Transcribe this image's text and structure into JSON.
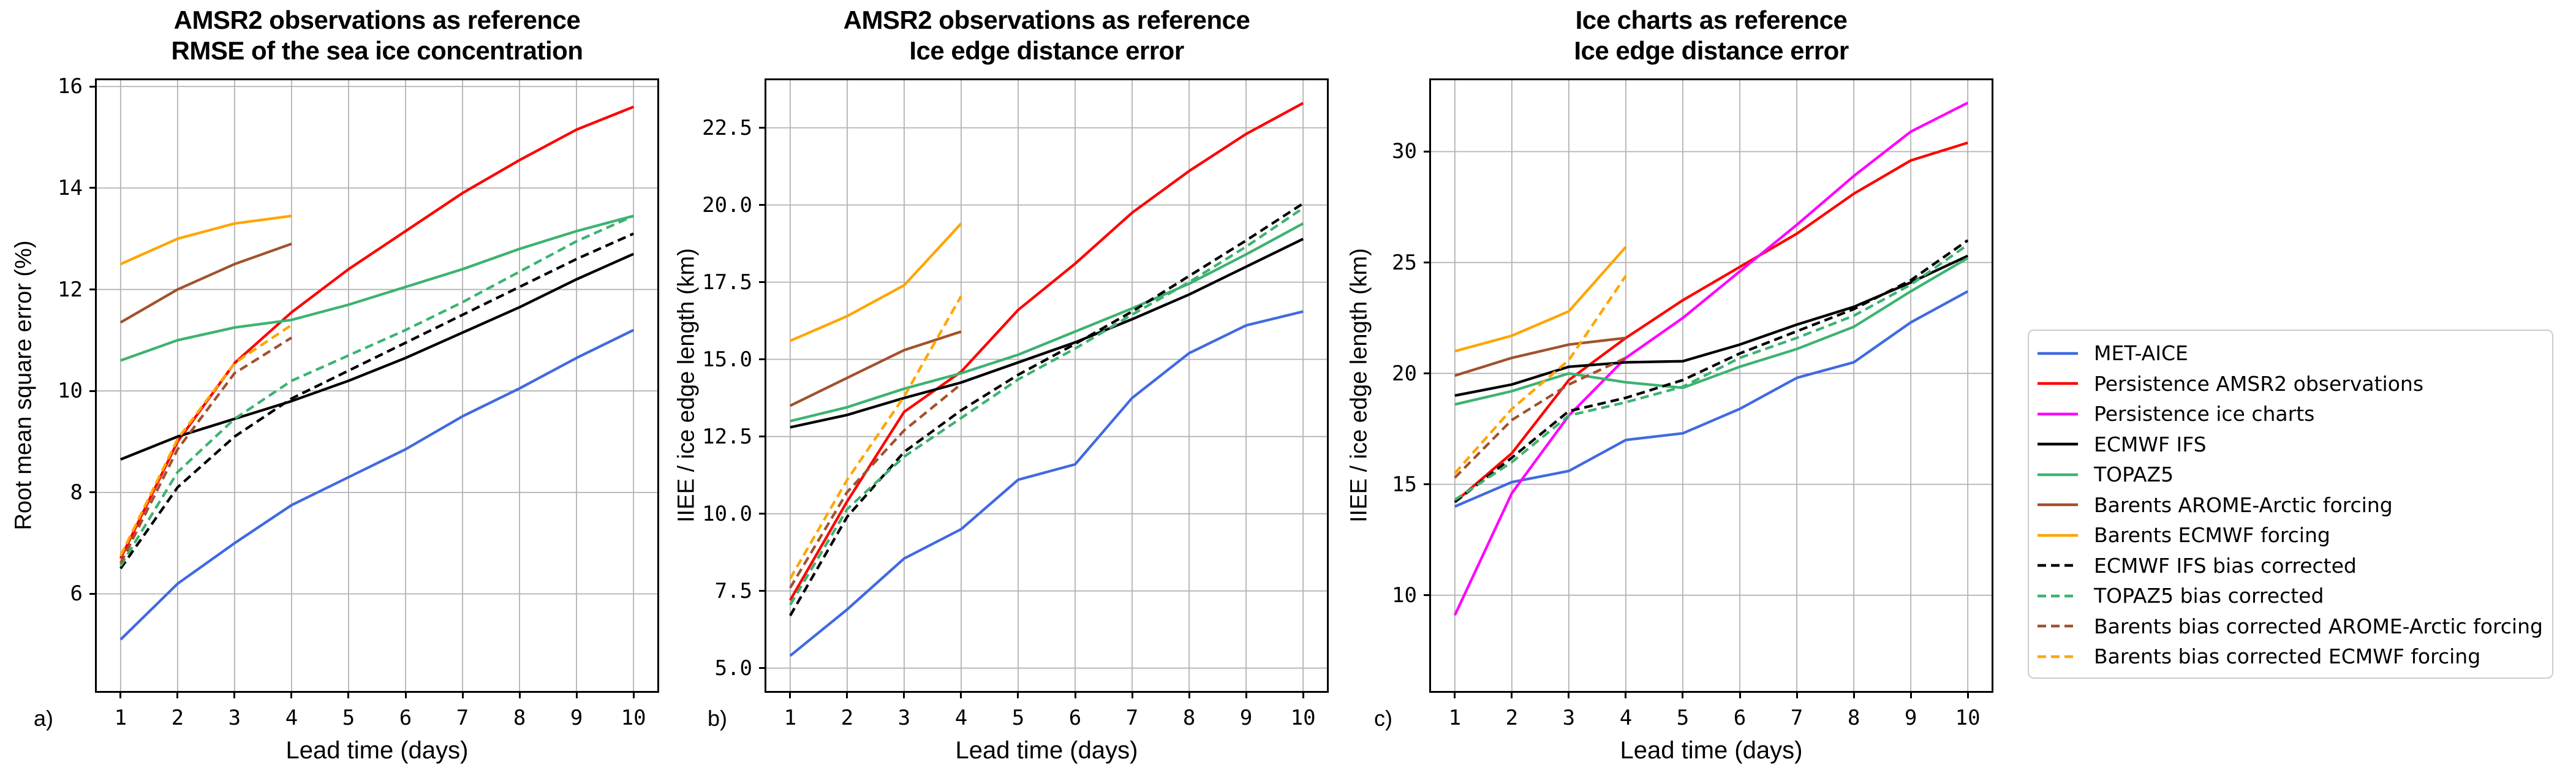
{
  "figure": {
    "background": "#ffffff"
  },
  "legend": {
    "entries": [
      {
        "label": "MET-AICE",
        "color": "#4169E1",
        "dash": false
      },
      {
        "label": "Persistence AMSR2 observations",
        "color": "#FF0000",
        "dash": false
      },
      {
        "label": "Persistence ice charts",
        "color": "#FF00FF",
        "dash": false
      },
      {
        "label": "ECMWF IFS",
        "color": "#000000",
        "dash": false
      },
      {
        "label": "TOPAZ5",
        "color": "#3CB371",
        "dash": false
      },
      {
        "label": "Barents AROME-Arctic forcing",
        "color": "#A0522D",
        "dash": false
      },
      {
        "label": "Barents ECMWF forcing",
        "color": "#FFA500",
        "dash": false
      },
      {
        "label": "ECMWF IFS bias corrected",
        "color": "#000000",
        "dash": true
      },
      {
        "label": "TOPAZ5 bias corrected",
        "color": "#3CB371",
        "dash": true
      },
      {
        "label": "Barents bias corrected AROME-Arctic forcing",
        "color": "#A0522D",
        "dash": true
      },
      {
        "label": "Barents bias corrected ECMWF forcing",
        "color": "#FFA500",
        "dash": true
      }
    ]
  },
  "chart_data": {
    "type": "line",
    "xlabel": "Lead time (days)",
    "x": [
      1,
      2,
      3,
      4,
      5,
      6,
      7,
      8,
      9,
      10
    ],
    "xtick_labels": [
      "1",
      "2",
      "3",
      "4",
      "5",
      "6",
      "7",
      "8",
      "9",
      "10"
    ],
    "xlim": [
      0.55,
      10.45
    ],
    "grid": true,
    "legend_position": "center right",
    "charts": [
      {
        "letter": "a)",
        "title_line1": "AMSR2 observations as reference",
        "title_line2": "RMSE of the sea ice concentration",
        "ylabel": "Root mean square error (%)",
        "ylim": [
          4.05,
          16.16
        ],
        "yticks": [
          6,
          8,
          10,
          12,
          14,
          16
        ],
        "ytick_labels": [
          "6",
          "8",
          "10",
          "12",
          "14",
          "16"
        ],
        "series": [
          {
            "name": "MET-AICE",
            "color": "#4169E1",
            "dash": false,
            "values": [
              5.1,
              6.2,
              7.0,
              7.75,
              8.3,
              8.85,
              9.5,
              10.05,
              10.65,
              11.2
            ]
          },
          {
            "name": "Persistence AMSR2 observations",
            "color": "#FF0000",
            "dash": false,
            "values": [
              6.7,
              9.0,
              10.55,
              11.55,
              12.4,
              13.15,
              13.9,
              14.55,
              15.15,
              15.6
            ]
          },
          {
            "name": "ECMWF IFS",
            "color": "#000000",
            "dash": false,
            "values": [
              8.65,
              9.1,
              9.45,
              9.8,
              10.2,
              10.65,
              11.15,
              11.65,
              12.2,
              12.7
            ]
          },
          {
            "name": "TOPAZ5",
            "color": "#3CB371",
            "dash": false,
            "values": [
              10.6,
              11.0,
              11.25,
              11.4,
              11.7,
              12.05,
              12.4,
              12.8,
              13.15,
              13.45
            ]
          },
          {
            "name": "Barents AROME-Arctic forcing",
            "color": "#A0522D",
            "dash": false,
            "values": [
              11.35,
              12.0,
              12.5,
              12.9
            ]
          },
          {
            "name": "Barents ECMWF forcing",
            "color": "#FFA500",
            "dash": false,
            "values": [
              12.5,
              13.0,
              13.3,
              13.45
            ]
          },
          {
            "name": "ECMWF IFS bias corrected",
            "color": "#000000",
            "dash": true,
            "values": [
              6.5,
              8.1,
              9.1,
              9.85,
              10.4,
              10.95,
              11.5,
              12.05,
              12.6,
              13.1
            ]
          },
          {
            "name": "TOPAZ5 bias corrected",
            "color": "#3CB371",
            "dash": true,
            "values": [
              6.55,
              8.4,
              9.45,
              10.2,
              10.7,
              11.2,
              11.75,
              12.35,
              12.95,
              13.45
            ]
          },
          {
            "name": "Barents bias corrected AROME-Arctic forcing",
            "color": "#A0522D",
            "dash": true,
            "values": [
              6.6,
              8.85,
              10.35,
              11.05
            ]
          },
          {
            "name": "Barents bias corrected ECMWF forcing",
            "color": "#FFA500",
            "dash": true,
            "values": [
              6.75,
              9.05,
              10.55,
              11.3
            ]
          }
        ]
      },
      {
        "letter": "b)",
        "title_line1": "AMSR2 observations as reference",
        "title_line2": "Ice edge distance error",
        "ylabel": "IIEE / ice edge length (km)",
        "ylim": [
          4.2,
          24.1
        ],
        "yticks": [
          5.0,
          7.5,
          10.0,
          12.5,
          15.0,
          17.5,
          20.0,
          22.5
        ],
        "ytick_labels": [
          "5.0",
          "7.5",
          "10.0",
          "12.5",
          "15.0",
          "17.5",
          "20.0",
          "22.5"
        ],
        "series": [
          {
            "name": "MET-AICE",
            "color": "#4169E1",
            "dash": false,
            "values": [
              5.4,
              6.9,
              8.55,
              9.5,
              11.1,
              11.6,
              13.75,
              15.2,
              16.1,
              16.55
            ]
          },
          {
            "name": "Persistence AMSR2 observations",
            "color": "#FF0000",
            "dash": false,
            "values": [
              7.2,
              10.4,
              13.3,
              14.6,
              16.6,
              18.1,
              19.75,
              21.1,
              22.3,
              23.3
            ]
          },
          {
            "name": "ECMWF IFS",
            "color": "#000000",
            "dash": false,
            "values": [
              12.8,
              13.2,
              13.75,
              14.25,
              14.9,
              15.55,
              16.3,
              17.1,
              18.0,
              18.9
            ]
          },
          {
            "name": "TOPAZ5",
            "color": "#3CB371",
            "dash": false,
            "values": [
              13.0,
              13.45,
              14.05,
              14.55,
              15.15,
              15.9,
              16.65,
              17.45,
              18.4,
              19.4
            ]
          },
          {
            "name": "Barents AROME-Arctic forcing",
            "color": "#A0522D",
            "dash": false,
            "values": [
              13.5,
              14.4,
              15.3,
              15.9
            ]
          },
          {
            "name": "Barents ECMWF forcing",
            "color": "#FFA500",
            "dash": false,
            "values": [
              15.6,
              16.4,
              17.4,
              19.4
            ]
          },
          {
            "name": "ECMWF IFS bias corrected",
            "color": "#000000",
            "dash": true,
            "values": [
              6.7,
              9.9,
              12.0,
              13.35,
              14.5,
              15.5,
              16.55,
              17.7,
              18.85,
              20.05
            ]
          },
          {
            "name": "TOPAZ5 bias corrected",
            "color": "#3CB371",
            "dash": true,
            "values": [
              7.05,
              10.15,
              11.85,
              13.1,
              14.35,
              15.35,
              16.45,
              17.5,
              18.65,
              19.9
            ]
          },
          {
            "name": "Barents bias corrected AROME-Arctic forcing",
            "color": "#A0522D",
            "dash": true,
            "values": [
              7.6,
              10.7,
              12.7,
              14.2
            ]
          },
          {
            "name": "Barents bias corrected ECMWF forcing",
            "color": "#FFA500",
            "dash": true,
            "values": [
              7.9,
              11.1,
              13.8,
              17.05
            ]
          }
        ]
      },
      {
        "letter": "c)",
        "title_line1": "Ice charts as reference",
        "title_line2": "Ice edge distance error",
        "ylabel": "IIEE / ice edge length (km)",
        "ylim": [
          5.6,
          33.3
        ],
        "yticks": [
          10,
          15,
          20,
          25,
          30
        ],
        "ytick_labels": [
          "10",
          "15",
          "20",
          "25",
          "30"
        ],
        "series": [
          {
            "name": "MET-AICE",
            "color": "#4169E1",
            "dash": false,
            "values": [
              14.0,
              15.1,
              15.6,
              17.0,
              17.3,
              18.4,
              19.8,
              20.5,
              22.3,
              23.7
            ]
          },
          {
            "name": "Persistence AMSR2 observations",
            "color": "#FF0000",
            "dash": false,
            "values": [
              14.2,
              16.4,
              19.7,
              21.6,
              23.3,
              24.8,
              26.3,
              28.1,
              29.6,
              30.4
            ]
          },
          {
            "name": "Persistence ice charts",
            "color": "#FF00FF",
            "dash": false,
            "values": [
              9.1,
              14.6,
              18.1,
              20.7,
              22.5,
              24.6,
              26.7,
              28.9,
              30.9,
              32.2
            ]
          },
          {
            "name": "ECMWF IFS",
            "color": "#000000",
            "dash": false,
            "values": [
              19.0,
              19.5,
              20.3,
              20.5,
              20.55,
              21.3,
              22.2,
              23.0,
              24.1,
              25.3
            ]
          },
          {
            "name": "TOPAZ5",
            "color": "#3CB371",
            "dash": false,
            "values": [
              18.6,
              19.2,
              20.0,
              19.6,
              19.35,
              20.3,
              21.1,
              22.1,
              23.7,
              25.2
            ]
          },
          {
            "name": "Barents AROME-Arctic forcing",
            "color": "#A0522D",
            "dash": false,
            "values": [
              19.9,
              20.7,
              21.3,
              21.6
            ]
          },
          {
            "name": "Barents ECMWF forcing",
            "color": "#FFA500",
            "dash": false,
            "values": [
              21.0,
              21.7,
              22.8,
              25.7
            ]
          },
          {
            "name": "ECMWF IFS bias corrected",
            "color": "#000000",
            "dash": true,
            "values": [
              14.2,
              16.2,
              18.3,
              18.9,
              19.7,
              20.9,
              21.9,
              22.9,
              24.2,
              26.0
            ]
          },
          {
            "name": "TOPAZ5 bias corrected",
            "color": "#3CB371",
            "dash": true,
            "values": [
              14.3,
              16.0,
              18.1,
              18.7,
              19.4,
              20.7,
              21.6,
              22.6,
              24.0,
              25.8
            ]
          },
          {
            "name": "Barents bias corrected AROME-Arctic forcing",
            "color": "#A0522D",
            "dash": true,
            "values": [
              15.3,
              17.9,
              19.5,
              20.7
            ]
          },
          {
            "name": "Barents bias corrected ECMWF forcing",
            "color": "#FFA500",
            "dash": true,
            "values": [
              15.5,
              18.4,
              20.6,
              24.4
            ]
          }
        ]
      }
    ]
  }
}
